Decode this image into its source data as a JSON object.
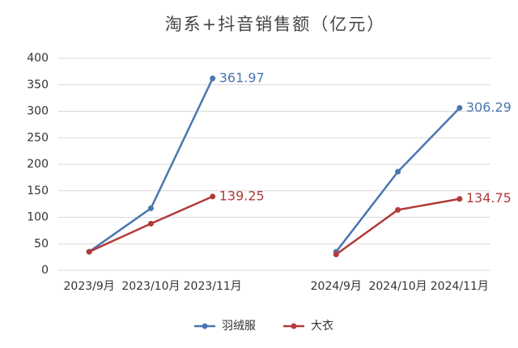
{
  "chart_data": {
    "type": "line",
    "title": "淘系+抖音销售额（亿元）",
    "categories": [
      "2023/9月",
      "2023/10月",
      "2023/11月",
      null,
      "2024/9月",
      "2024/10月",
      "2024/11月"
    ],
    "series": [
      {
        "name": "羽绒服",
        "color": "#4a76b0",
        "values": [
          35,
          117,
          361.97,
          null,
          35,
          186,
          306.29
        ],
        "value_labels": [
          null,
          null,
          "361.97",
          null,
          null,
          null,
          "306.29"
        ]
      },
      {
        "name": "大衣",
        "color": "#b33a3a",
        "values": [
          35,
          88,
          139.25,
          null,
          30,
          114,
          134.75
        ],
        "value_labels": [
          null,
          null,
          "139.25",
          null,
          null,
          null,
          "134.75"
        ]
      }
    ],
    "ylim": [
      0,
      400
    ],
    "yticks": [
      0,
      50,
      100,
      150,
      200,
      250,
      300,
      350,
      400
    ],
    "grid": true,
    "legend": "bottom"
  }
}
